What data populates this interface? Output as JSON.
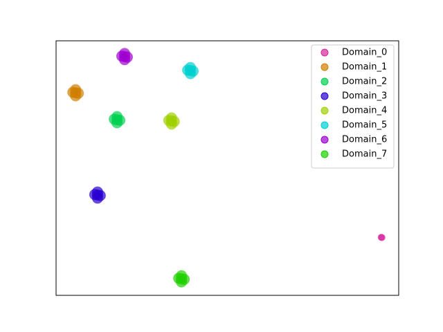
{
  "chart_data": {
    "type": "scatter",
    "xlim": [
      0,
      1
    ],
    "ylim": [
      0,
      1
    ],
    "legend": "upper right",
    "series": [
      {
        "name": "Domain_0",
        "color": "#d6279e",
        "x": [
          0.949,
          0.951
        ],
        "y": [
          0.228,
          0.227
        ]
      },
      {
        "name": "Domain_1",
        "color": "#d07f00",
        "x": [
          0.057,
          0.049,
          0.065,
          0.057,
          0.057
        ],
        "y": [
          0.796,
          0.798,
          0.794,
          0.808,
          0.784
        ]
      },
      {
        "name": "Domain_2",
        "color": "#00d050",
        "x": [
          0.178,
          0.17,
          0.186,
          0.178,
          0.178
        ],
        "y": [
          0.69,
          0.692,
          0.688,
          0.702,
          0.678
        ]
      },
      {
        "name": "Domain_3",
        "color": "#2a00d0",
        "x": [
          0.121,
          0.113,
          0.129,
          0.121,
          0.121
        ],
        "y": [
          0.394,
          0.396,
          0.392,
          0.406,
          0.382
        ]
      },
      {
        "name": "Domain_4",
        "color": "#a0d000",
        "x": [
          0.337,
          0.329,
          0.345,
          0.337,
          0.337
        ],
        "y": [
          0.685,
          0.687,
          0.683,
          0.697,
          0.673
        ]
      },
      {
        "name": "Domain_5",
        "color": "#00d0d0",
        "x": [
          0.392,
          0.384,
          0.4,
          0.392,
          0.392
        ],
        "y": [
          0.883,
          0.885,
          0.881,
          0.895,
          0.871
        ]
      },
      {
        "name": "Domain_6",
        "color": "#a000d0",
        "x": [
          0.2,
          0.192,
          0.208,
          0.2,
          0.2
        ],
        "y": [
          0.938,
          0.94,
          0.936,
          0.95,
          0.926
        ]
      },
      {
        "name": "Domain_7",
        "color": "#20d000",
        "x": [
          0.366,
          0.358,
          0.374,
          0.366,
          0.366
        ],
        "y": [
          0.065,
          0.067,
          0.063,
          0.077,
          0.053
        ]
      }
    ]
  }
}
